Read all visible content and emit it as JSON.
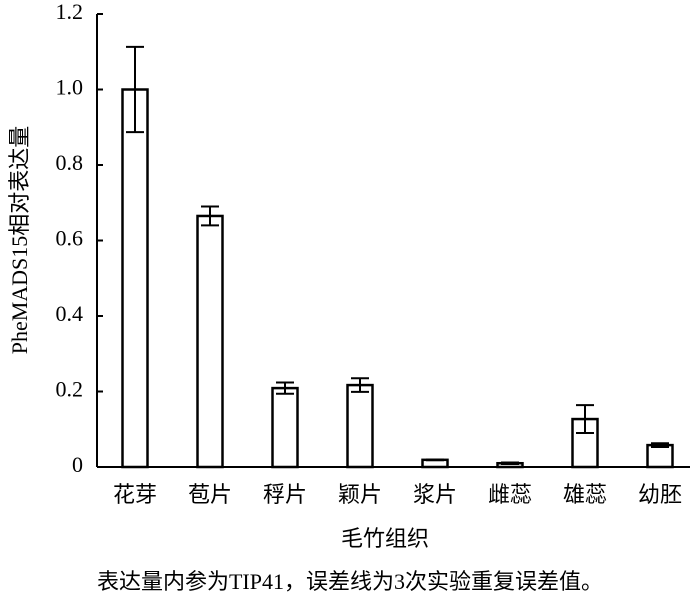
{
  "chart_data": {
    "type": "bar",
    "y_label": "PheMADS15相对表达量",
    "x_label": "毛竹组织",
    "caption": "表达量内参为TIP41，误差线为3次实验重复误差值。",
    "categories": [
      "花芽",
      "苞片",
      "稃片",
      "颖片",
      "浆片",
      "雌蕊",
      "雄蕊",
      "幼胚"
    ],
    "values": [
      1.0,
      0.665,
      0.209,
      0.217,
      0.019,
      0.01,
      0.127,
      0.058
    ],
    "errors": [
      0.113,
      0.025,
      0.015,
      0.018,
      0.001,
      0.002,
      0.037,
      0.005
    ],
    "color": "#ffffff",
    "ylim": [
      0,
      1.2
    ],
    "yticks": [
      0,
      0.2,
      0.4,
      0.6,
      0.8,
      {
        "value": 1,
        "label": "1.0"
      },
      1.2
    ],
    "grid": false
  }
}
